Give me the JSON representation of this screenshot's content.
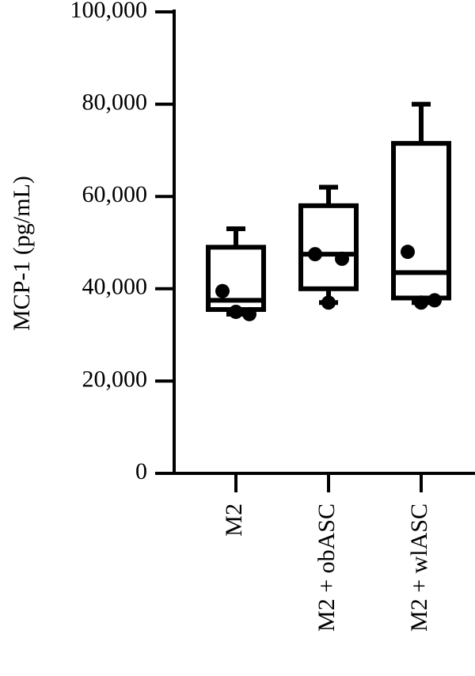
{
  "chart_data": {
    "type": "box",
    "y_label": "MCP-1 (pg/mL)",
    "categories": [
      "M2",
      "M2 + obASC",
      "M2 + wlASC"
    ],
    "boxes": [
      {
        "min": 34500,
        "q1": 35500,
        "median": 37500,
        "q3": 49000,
        "max": 53000,
        "points": [
          39500,
          34500,
          35000
        ]
      },
      {
        "min": 37000,
        "q1": 40000,
        "median": 47500,
        "q3": 58000,
        "max": 62000,
        "points": [
          47500,
          46500,
          37000
        ]
      },
      {
        "min": 37000,
        "q1": 38000,
        "median": 43500,
        "q3": 71500,
        "max": 80000,
        "points": [
          48000,
          37500,
          37000
        ]
      }
    ],
    "color": "#000000",
    "ylim": [
      0,
      100000
    ],
    "yticks": [
      0,
      {
        "value": 20000,
        "label": "20,000"
      },
      {
        "value": 40000,
        "label": "40,000"
      },
      {
        "value": 60000,
        "label": "60,000"
      },
      {
        "value": 80000,
        "label": "80,000"
      },
      {
        "value": 100000,
        "label": "100,000"
      }
    ]
  }
}
